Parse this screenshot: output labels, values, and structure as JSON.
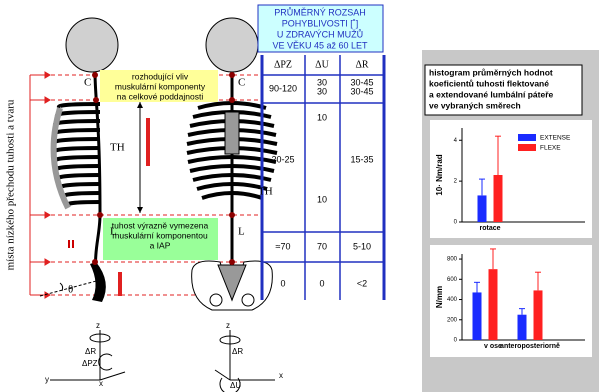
{
  "side_label": "místa nízkého přechodu tuhosti a tvaru",
  "figure_labels": [
    "C",
    "TH",
    "L",
    "C",
    "TH",
    "L",
    "S",
    "θ"
  ],
  "notes": [
    [
      "rozhodující vliv",
      "muskulární komponenty",
      "na celkové poddajnosti"
    ],
    [
      "tuhost výrazně vymezena",
      "muskulární komponentou",
      "a  IAP"
    ]
  ],
  "table": {
    "title": [
      "PRŮMĚRNÝ ROZSAH",
      "POHYBLIVOSTI [˚]",
      "U ZDRAVÝCH MUŽŮ",
      "VE VĚKU 45 až 60 LET"
    ],
    "columns": [
      "ΔPZ",
      "ΔU",
      "ΔR"
    ],
    "rows": [
      [
        [
          "90-120"
        ],
        [
          "30",
          "30"
        ],
        [
          "30-45",
          "30-45"
        ]
      ],
      [
        [
          "20-25"
        ],
        [
          "10",
          "10"
        ],
        [
          "15-35"
        ]
      ],
      [
        [
          "≈70"
        ],
        [
          "70"
        ],
        [
          "5-10"
        ]
      ],
      [
        [
          "0"
        ],
        [
          "0"
        ],
        [
          "<2"
        ]
      ]
    ]
  },
  "histogram": {
    "title": [
      "histogram průměrných hodnot",
      "koeficientů tuhosti flektované",
      " a extendované lumbální páteře",
      "ve vybraných směrech"
    ],
    "charts": [
      {
        "type": "bar",
        "ylabel": "10· Nm/rad",
        "categories": [
          "rotace"
        ],
        "ylim": [
          0,
          4.6
        ],
        "yticks": [
          0,
          2,
          4
        ],
        "series": [
          {
            "name": "EXTENSE",
            "color": "#1a2bff",
            "values": [
              1.3
            ],
            "errors": [
              0.8
            ]
          },
          {
            "name": "FLEXE",
            "color": "#ff2020",
            "values": [
              2.3
            ],
            "errors": [
              1.9
            ]
          }
        ]
      },
      {
        "type": "bar",
        "ylabel": "N/mm",
        "categories": [
          "v ose",
          "anteroposteriorně"
        ],
        "ylim": [
          0,
          850
        ],
        "yticks": [
          0,
          200,
          400,
          600,
          800
        ],
        "series": [
          {
            "name": "EXTENSE",
            "color": "#1a2bff",
            "values": [
              470,
              250
            ],
            "errors": [
              100,
              60
            ]
          },
          {
            "name": "FLEXE",
            "color": "#ff2020",
            "values": [
              700,
              490
            ],
            "errors": [
              200,
              180
            ]
          }
        ]
      }
    ]
  },
  "axis_labels": [
    "z",
    "ΔR",
    "ΔPZ",
    "y",
    "x",
    "z",
    "ΔR",
    "ΔU",
    "x"
  ]
}
